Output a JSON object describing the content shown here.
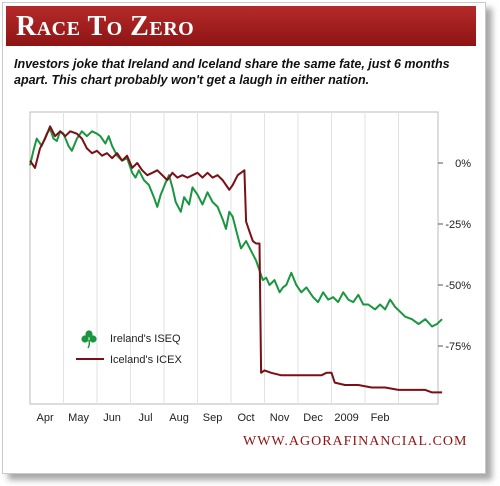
{
  "header": {
    "title": "Race To Zero",
    "subtitle": "Investors joke that Ireland and Iceland share the same fate, just 6 months apart. This chart probably won't get a laugh in either nation."
  },
  "source": "WWW.AGORAFINANCIAL.COM",
  "colors": {
    "title_bar": "#a11d1d",
    "ireland": "#1a9640",
    "iceland": "#7a0f16",
    "source_text": "#8e1414"
  },
  "chart_data": {
    "type": "line",
    "x_tick_labels": [
      "Apr",
      "May",
      "Jun",
      "Jul",
      "Aug",
      "Sep",
      "Oct",
      "Nov",
      "Dec",
      "2009",
      "Feb"
    ],
    "y_tick_labels": [
      "0%",
      "-25%",
      "-50%",
      "-75%"
    ],
    "y_ticks": [
      0,
      -25,
      -50,
      -75
    ],
    "ylim": [
      -100,
      15
    ],
    "xlim": [
      0,
      12.3
    ],
    "grid": "vertical",
    "legend_position": "bottom-left",
    "series": [
      {
        "name": "Ireland's ISEQ",
        "icon": "shamrock-icon",
        "color": "#1a9640",
        "points": [
          [
            0,
            -1
          ],
          [
            0.1,
            5
          ],
          [
            0.2,
            10
          ],
          [
            0.35,
            7
          ],
          [
            0.5,
            12
          ],
          [
            0.6,
            14
          ],
          [
            0.7,
            10
          ],
          [
            0.8,
            9
          ],
          [
            0.9,
            13
          ],
          [
            1,
            12
          ],
          [
            1.15,
            7
          ],
          [
            1.25,
            5
          ],
          [
            1.4,
            10
          ],
          [
            1.55,
            13
          ],
          [
            1.7,
            11
          ],
          [
            1.85,
            13
          ],
          [
            2,
            12
          ],
          [
            2.1,
            11
          ],
          [
            2.25,
            8
          ],
          [
            2.35,
            11
          ],
          [
            2.45,
            7
          ],
          [
            2.6,
            3
          ],
          [
            2.75,
            1
          ],
          [
            2.9,
            2
          ],
          [
            3.05,
            -4
          ],
          [
            3.15,
            -6
          ],
          [
            3.25,
            -3
          ],
          [
            3.4,
            -7
          ],
          [
            3.55,
            -9
          ],
          [
            3.7,
            -14
          ],
          [
            3.8,
            -18
          ],
          [
            3.9,
            -13
          ],
          [
            4.05,
            -8
          ],
          [
            4.15,
            -5
          ],
          [
            4.25,
            -10
          ],
          [
            4.35,
            -16
          ],
          [
            4.5,
            -20
          ],
          [
            4.6,
            -14
          ],
          [
            4.75,
            -17
          ],
          [
            4.85,
            -10
          ],
          [
            5,
            -13
          ],
          [
            5.15,
            -17
          ],
          [
            5.3,
            -12
          ],
          [
            5.45,
            -16
          ],
          [
            5.6,
            -18
          ],
          [
            5.75,
            -23
          ],
          [
            5.85,
            -27
          ],
          [
            5.95,
            -20
          ],
          [
            6.05,
            -22
          ],
          [
            6.2,
            -30
          ],
          [
            6.3,
            -35
          ],
          [
            6.45,
            -32
          ],
          [
            6.6,
            -36
          ],
          [
            6.75,
            -40
          ],
          [
            6.85,
            -44
          ],
          [
            6.95,
            -48
          ],
          [
            7.05,
            -47
          ],
          [
            7.15,
            -50
          ],
          [
            7.3,
            -48
          ],
          [
            7.45,
            -53
          ],
          [
            7.55,
            -51
          ],
          [
            7.65,
            -50
          ],
          [
            7.8,
            -45
          ],
          [
            7.95,
            -50
          ],
          [
            8.1,
            -53
          ],
          [
            8.25,
            -51
          ],
          [
            8.45,
            -55
          ],
          [
            8.6,
            -57
          ],
          [
            8.75,
            -53
          ],
          [
            8.9,
            -56
          ],
          [
            9.05,
            -55
          ],
          [
            9.2,
            -57
          ],
          [
            9.35,
            -53
          ],
          [
            9.5,
            -56
          ],
          [
            9.65,
            -57
          ],
          [
            9.8,
            -54
          ],
          [
            9.95,
            -58
          ],
          [
            10.1,
            -58
          ],
          [
            10.3,
            -60
          ],
          [
            10.45,
            -58
          ],
          [
            10.6,
            -60
          ],
          [
            10.75,
            -56
          ],
          [
            10.9,
            -59
          ],
          [
            11.05,
            -61
          ],
          [
            11.2,
            -63
          ],
          [
            11.4,
            -64
          ],
          [
            11.6,
            -66
          ],
          [
            11.8,
            -64
          ],
          [
            12,
            -67
          ],
          [
            12.15,
            -66
          ],
          [
            12.3,
            -64
          ]
        ]
      },
      {
        "name": "Iceland's ICEX",
        "icon": "line-swatch",
        "color": "#7a0f16",
        "points": [
          [
            0,
            1
          ],
          [
            0.15,
            -2
          ],
          [
            0.3,
            6
          ],
          [
            0.45,
            10
          ],
          [
            0.6,
            15
          ],
          [
            0.75,
            11
          ],
          [
            0.9,
            13
          ],
          [
            1.05,
            11
          ],
          [
            1.2,
            13
          ],
          [
            1.4,
            12
          ],
          [
            1.55,
            10
          ],
          [
            1.7,
            6
          ],
          [
            1.85,
            4
          ],
          [
            2,
            5
          ],
          [
            2.15,
            3
          ],
          [
            2.3,
            4
          ],
          [
            2.45,
            2
          ],
          [
            2.6,
            4
          ],
          [
            2.75,
            1
          ],
          [
            2.9,
            3
          ],
          [
            3.05,
            -2
          ],
          [
            3.2,
            0
          ],
          [
            3.35,
            -3
          ],
          [
            3.5,
            -5
          ],
          [
            3.65,
            -4
          ],
          [
            3.8,
            -3
          ],
          [
            3.95,
            -5
          ],
          [
            4.1,
            -7
          ],
          [
            4.25,
            -4
          ],
          [
            4.4,
            -6
          ],
          [
            4.55,
            -5
          ],
          [
            4.7,
            -6
          ],
          [
            4.85,
            -5
          ],
          [
            5,
            -4
          ],
          [
            5.15,
            -6
          ],
          [
            5.3,
            -4
          ],
          [
            5.45,
            -6
          ],
          [
            5.6,
            -5
          ],
          [
            5.75,
            -7
          ],
          [
            5.85,
            -9
          ],
          [
            5.95,
            -11
          ],
          [
            6.05,
            -9
          ],
          [
            6.2,
            -5
          ],
          [
            6.4,
            -3
          ],
          [
            6.45,
            -24
          ],
          [
            6.55,
            -28
          ],
          [
            6.65,
            -32
          ],
          [
            6.75,
            -33
          ],
          [
            6.85,
            -33
          ],
          [
            6.9,
            -86
          ],
          [
            7.0,
            -85
          ],
          [
            7.2,
            -86
          ],
          [
            7.5,
            -87
          ],
          [
            7.8,
            -87
          ],
          [
            8.1,
            -87
          ],
          [
            8.4,
            -87
          ],
          [
            8.7,
            -87
          ],
          [
            8.85,
            -86
          ],
          [
            9.0,
            -86
          ],
          [
            9.1,
            -90
          ],
          [
            9.4,
            -91
          ],
          [
            9.8,
            -91
          ],
          [
            10.2,
            -92
          ],
          [
            10.6,
            -92
          ],
          [
            11.0,
            -93
          ],
          [
            11.4,
            -93
          ],
          [
            11.8,
            -93
          ],
          [
            12.0,
            -94
          ],
          [
            12.3,
            -94
          ]
        ]
      }
    ]
  }
}
